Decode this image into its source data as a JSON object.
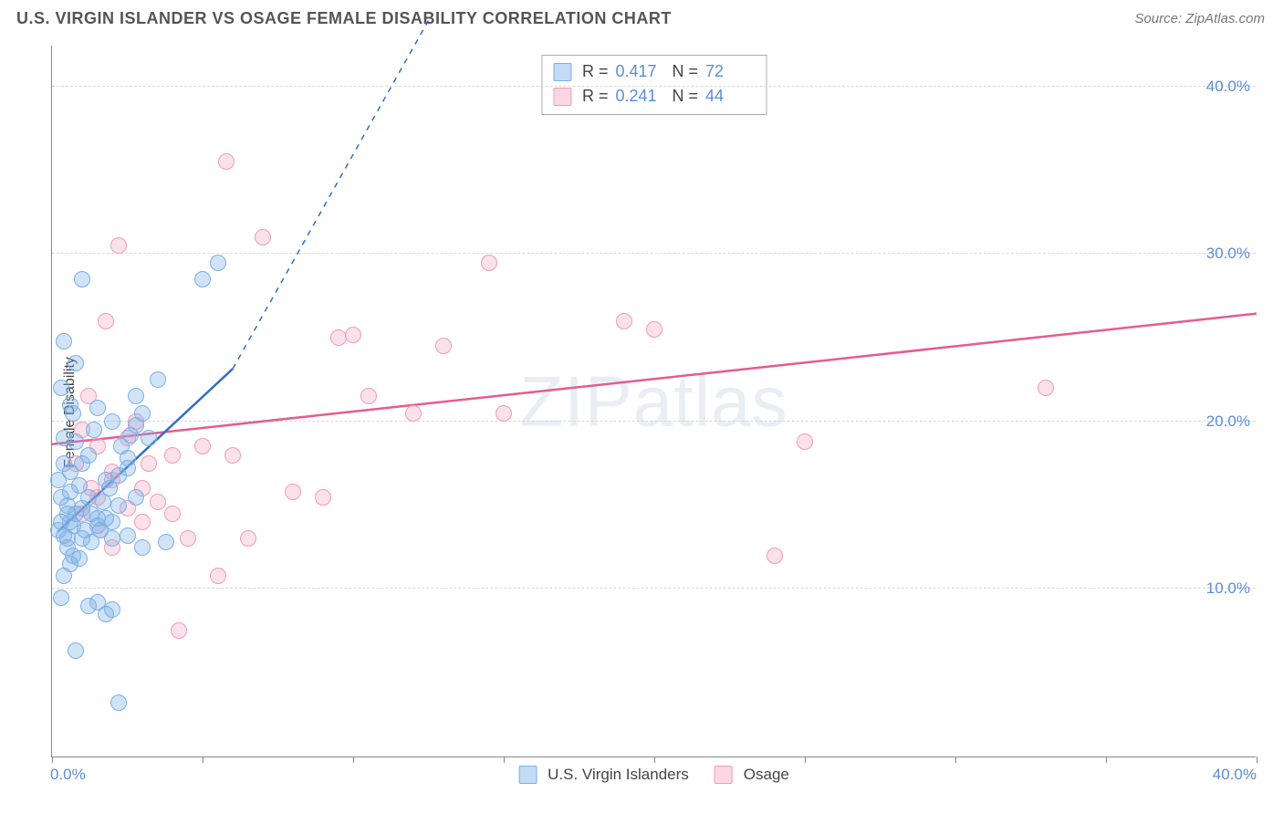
{
  "header": {
    "title": "U.S. VIRGIN ISLANDER VS OSAGE FEMALE DISABILITY CORRELATION CHART",
    "source": "Source: ZipAtlas.com"
  },
  "watermark": "ZIPatlas",
  "chart": {
    "type": "scatter",
    "ylabel": "Female Disability",
    "xlim": [
      0,
      40
    ],
    "ylim": [
      0,
      42.5
    ],
    "y_gridlines": [
      10,
      20,
      30,
      40
    ],
    "y_tick_labels": [
      "10.0%",
      "20.0%",
      "30.0%",
      "40.0%"
    ],
    "x_tick_positions": [
      0,
      5,
      10,
      15,
      20,
      25,
      30,
      35,
      40
    ],
    "x_tick_labels_shown": {
      "0": "0.0%",
      "40": "40.0%"
    },
    "axis_color": "#888888",
    "grid_color": "#d8d8d8",
    "tick_label_color": "#5b8dd6",
    "tick_fontsize": 17,
    "background_color": "#ffffff",
    "marker_radius": 9,
    "series": {
      "blue": {
        "label": "U.S. Virgin Islanders",
        "marker_fill": "rgba(122,176,230,0.35)",
        "marker_stroke": "#7ab0e6",
        "trend_color": "#2f6fc4",
        "trend": {
          "x1": 0.2,
          "y1": 13.5,
          "x2_solid": 6,
          "y2_solid": 23.2,
          "x2_dash": 12.5,
          "y2_dash": 44
        },
        "R": "0.417",
        "N": "72",
        "points": [
          [
            0.2,
            13.5
          ],
          [
            0.3,
            14.0
          ],
          [
            0.4,
            13.2
          ],
          [
            0.5,
            14.5
          ],
          [
            0.3,
            15.5
          ],
          [
            0.2,
            16.5
          ],
          [
            0.6,
            17.0
          ],
          [
            0.4,
            19.0
          ],
          [
            0.7,
            20.5
          ],
          [
            0.3,
            22.0
          ],
          [
            0.8,
            23.5
          ],
          [
            0.4,
            24.8
          ],
          [
            1.0,
            28.5
          ],
          [
            0.6,
            11.5
          ],
          [
            0.4,
            10.8
          ],
          [
            0.3,
            9.5
          ],
          [
            1.2,
            9.0
          ],
          [
            1.5,
            9.2
          ],
          [
            1.8,
            8.5
          ],
          [
            2.0,
            8.8
          ],
          [
            0.8,
            6.3
          ],
          [
            2.2,
            3.2
          ],
          [
            1.0,
            13.0
          ],
          [
            1.3,
            12.8
          ],
          [
            1.6,
            13.5
          ],
          [
            1.5,
            14.2
          ],
          [
            2.0,
            13.0
          ],
          [
            2.5,
            13.2
          ],
          [
            3.0,
            12.5
          ],
          [
            3.8,
            12.8
          ],
          [
            2.2,
            15.0
          ],
          [
            2.8,
            15.5
          ],
          [
            1.8,
            16.5
          ],
          [
            2.5,
            17.2
          ],
          [
            3.2,
            19.0
          ],
          [
            2.0,
            20.0
          ],
          [
            1.5,
            20.8
          ],
          [
            2.8,
            21.5
          ],
          [
            3.5,
            22.5
          ],
          [
            5.5,
            29.5
          ],
          [
            5.0,
            28.5
          ],
          [
            0.5,
            13.0
          ],
          [
            0.6,
            14.0
          ],
          [
            0.7,
            13.8
          ],
          [
            0.8,
            14.5
          ],
          [
            0.5,
            15.0
          ],
          [
            0.6,
            15.8
          ],
          [
            0.9,
            16.2
          ],
          [
            1.0,
            17.5
          ],
          [
            1.2,
            18.0
          ],
          [
            0.8,
            18.8
          ],
          [
            1.4,
            19.5
          ],
          [
            0.5,
            12.5
          ],
          [
            0.7,
            12.0
          ],
          [
            0.9,
            11.8
          ],
          [
            1.1,
            13.5
          ],
          [
            1.3,
            14.5
          ],
          [
            1.7,
            15.2
          ],
          [
            1.9,
            16.0
          ],
          [
            2.3,
            18.5
          ],
          [
            2.6,
            19.2
          ],
          [
            2.0,
            14.0
          ],
          [
            1.5,
            13.8
          ],
          [
            1.8,
            14.2
          ],
          [
            2.2,
            16.8
          ],
          [
            2.5,
            17.8
          ],
          [
            2.8,
            19.8
          ],
          [
            3.0,
            20.5
          ],
          [
            1.0,
            14.8
          ],
          [
            1.2,
            15.5
          ],
          [
            0.4,
            17.5
          ],
          [
            0.6,
            21.0
          ]
        ]
      },
      "pink": {
        "label": "Osage",
        "marker_fill": "rgba(242,154,184,0.3)",
        "marker_stroke": "#f29ab8",
        "trend_color": "#e85a8f",
        "trend": {
          "x1": 0,
          "y1": 18.7,
          "x2": 40,
          "y2": 26.5
        },
        "R": "0.241",
        "N": "44",
        "points": [
          [
            1.5,
            18.5
          ],
          [
            2.0,
            16.5
          ],
          [
            2.5,
            14.8
          ],
          [
            3.0,
            14.0
          ],
          [
            3.5,
            15.2
          ],
          [
            4.0,
            18.0
          ],
          [
            4.5,
            13.0
          ],
          [
            5.0,
            18.5
          ],
          [
            5.5,
            10.8
          ],
          [
            6.0,
            18.0
          ],
          [
            6.5,
            13.0
          ],
          [
            7.0,
            31.0
          ],
          [
            8.0,
            15.8
          ],
          [
            9.0,
            15.5
          ],
          [
            9.5,
            25.0
          ],
          [
            10.0,
            25.2
          ],
          [
            10.5,
            21.5
          ],
          [
            12.0,
            20.5
          ],
          [
            13.0,
            24.5
          ],
          [
            14.5,
            29.5
          ],
          [
            15.0,
            20.5
          ],
          [
            19.0,
            26.0
          ],
          [
            20.0,
            25.5
          ],
          [
            24.0,
            12.0
          ],
          [
            25.0,
            18.8
          ],
          [
            33.0,
            22.0
          ],
          [
            2.2,
            30.5
          ],
          [
            5.8,
            35.5
          ],
          [
            1.8,
            26.0
          ],
          [
            1.2,
            21.5
          ],
          [
            2.8,
            20.0
          ],
          [
            3.2,
            17.5
          ],
          [
            4.2,
            7.5
          ],
          [
            1.0,
            14.5
          ],
          [
            1.5,
            15.5
          ],
          [
            2.0,
            17.0
          ],
          [
            2.5,
            19.0
          ],
          [
            3.0,
            16.0
          ],
          [
            4.0,
            14.5
          ],
          [
            0.8,
            17.5
          ],
          [
            1.0,
            19.5
          ],
          [
            1.3,
            16.0
          ],
          [
            1.6,
            13.5
          ],
          [
            2.0,
            12.5
          ]
        ]
      }
    },
    "stats_box": {
      "border_color": "#aaaaaa",
      "label_color": "#444444",
      "value_color": "#5b8dd6",
      "fontsize": 18
    }
  },
  "legend": {
    "fontsize": 17,
    "text_color": "#444444"
  }
}
